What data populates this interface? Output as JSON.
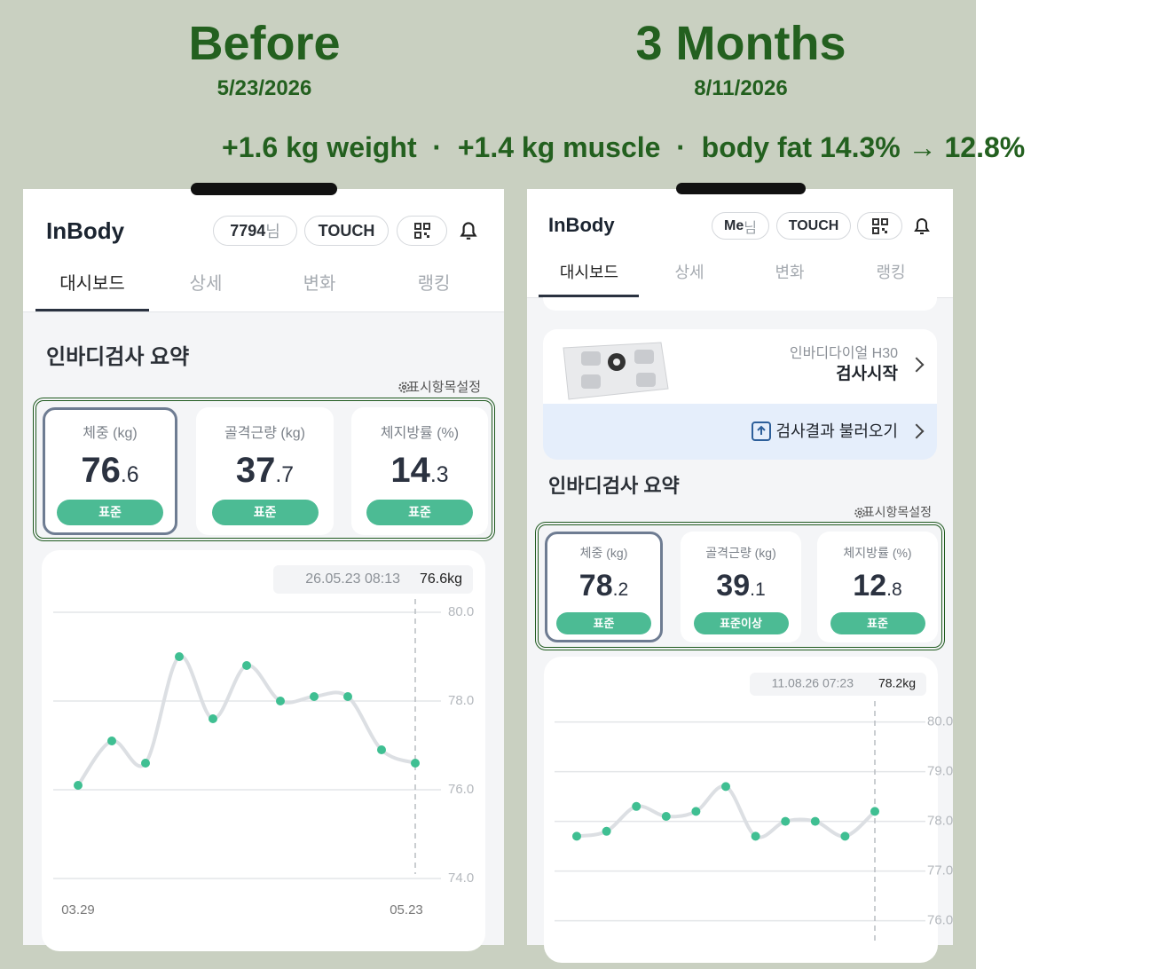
{
  "header": {
    "before_title": "Before",
    "before_date": "5/23/2026",
    "after_title": "3 Months",
    "after_date": "8/11/2026",
    "summary": "+1.6 kg weight  ·  +1.4 kg muscle  ·  body fat 14.3% → 12.8%"
  },
  "panels": [
    {
      "logo": "InBody",
      "user": "7794",
      "user_suffix": "님",
      "touch": "TOUCH",
      "tabs": [
        "대시보드",
        "상세",
        "변화",
        "랭킹"
      ],
      "section_title": "인바디검사 요약",
      "settings": "표시항목설정",
      "cards": [
        {
          "label": "체중 (kg)",
          "value_int": "76",
          "value_dec": ".6",
          "badge": "표준"
        },
        {
          "label": "골격근량 (kg)",
          "value_int": "37",
          "value_dec": ".7",
          "badge": "표준"
        },
        {
          "label": "체지방률 (%)",
          "value_int": "14",
          "value_dec": ".3",
          "badge": "표준"
        }
      ]
    },
    {
      "logo": "InBody",
      "user": "Me",
      "user_suffix": "님",
      "touch": "TOUCH",
      "tabs": [
        "대시보드",
        "상세",
        "변화",
        "랭킹"
      ],
      "device": {
        "model": "인바디다이얼 H30",
        "action": "검사시작",
        "import": "검사결과 불러오기"
      },
      "section_title": "인바디검사 요약",
      "settings": "표시항목설정",
      "cards": [
        {
          "label": "체중 (kg)",
          "value_int": "78",
          "value_dec": ".2",
          "badge": "표준"
        },
        {
          "label": "골격근량 (kg)",
          "value_int": "39",
          "value_dec": ".1",
          "badge": "표준이상"
        },
        {
          "label": "체지방률 (%)",
          "value_int": "12",
          "value_dec": ".8",
          "badge": "표준"
        }
      ]
    }
  ],
  "chart_data": [
    {
      "type": "line",
      "tooltip": {
        "time": "26.05.23 08:13",
        "value": "76.6kg"
      },
      "categories": [
        "03.29",
        null,
        null,
        null,
        null,
        null,
        null,
        null,
        null,
        null,
        "05.23"
      ],
      "values": [
        76.1,
        77.1,
        76.6,
        79.0,
        77.6,
        78.8,
        78.0,
        78.1,
        78.1,
        76.9,
        76.6
      ],
      "ylim": [
        73.8,
        80.4
      ],
      "yticks": [
        {
          "value": 80,
          "label": "80.0"
        },
        {
          "value": 78,
          "label": "78.0"
        },
        {
          "value": 76,
          "label": "76.0"
        },
        {
          "value": 74,
          "label": "74.0"
        }
      ],
      "color": "#3fbf92",
      "line_color": "#dcdfe3",
      "grid": true
    },
    {
      "type": "line",
      "tooltip": {
        "time": "11.08.26 07:23",
        "value": "78.2kg"
      },
      "categories": [
        null,
        null,
        null,
        null,
        null,
        null,
        null,
        null,
        null,
        null,
        null
      ],
      "values": [
        77.7,
        77.8,
        78.3,
        78.1,
        78.2,
        78.7,
        77.7,
        78.0,
        78.0,
        77.7,
        78.2
      ],
      "ylim": [
        75.6,
        80.6
      ],
      "yticks": [
        {
          "value": 80,
          "label": "80.0"
        },
        {
          "value": 79,
          "label": "79.0"
        },
        {
          "value": 78,
          "label": "78.0"
        },
        {
          "value": 77,
          "label": "77.0"
        },
        {
          "value": 76,
          "label": "76.0"
        }
      ],
      "color": "#3fbf92",
      "line_color": "#dcdfe3",
      "grid": true
    }
  ]
}
